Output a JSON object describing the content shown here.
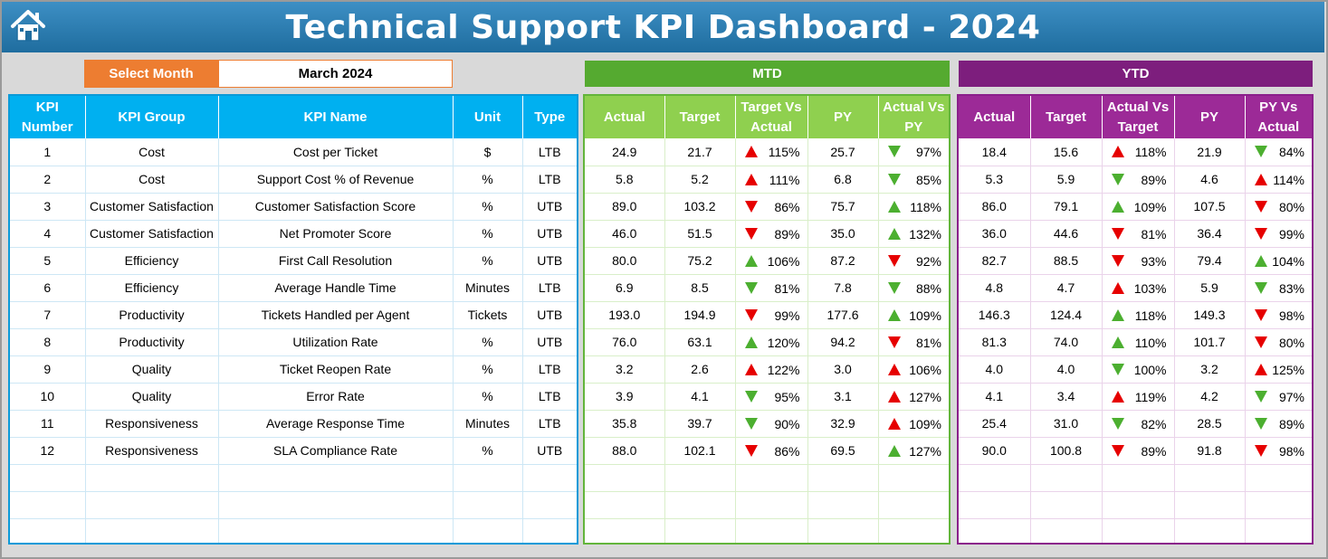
{
  "title": "Technical Support KPI Dashboard - 2024",
  "selector": {
    "label": "Select Month",
    "value": "March 2024"
  },
  "banners": {
    "mtd": "MTD",
    "ytd": "YTD"
  },
  "colors": {
    "title_bar": "#2a7db5",
    "selector_label": "#ed7d31",
    "kpi_header": "#00b0f0",
    "mtd_header": "#8fd04f",
    "ytd_header": "#9c2a97",
    "arrow_up_red": "#e60000",
    "arrow_green": "#4caf30"
  },
  "kpi_table": {
    "headers": [
      "KPI Number",
      "KPI Group",
      "KPI Name",
      "Unit",
      "Type"
    ],
    "rows": [
      [
        "1",
        "Cost",
        "Cost per Ticket",
        "$",
        "LTB"
      ],
      [
        "2",
        "Cost",
        "Support Cost % of Revenue",
        "%",
        "LTB"
      ],
      [
        "3",
        "Customer Satisfaction",
        "Customer Satisfaction Score",
        "%",
        "UTB"
      ],
      [
        "4",
        "Customer Satisfaction",
        "Net Promoter Score",
        "%",
        "UTB"
      ],
      [
        "5",
        "Efficiency",
        "First Call Resolution",
        "%",
        "UTB"
      ],
      [
        "6",
        "Efficiency",
        "Average Handle Time",
        "Minutes",
        "LTB"
      ],
      [
        "7",
        "Productivity",
        "Tickets Handled per Agent",
        "Tickets",
        "UTB"
      ],
      [
        "8",
        "Productivity",
        "Utilization Rate",
        "%",
        "UTB"
      ],
      [
        "9",
        "Quality",
        "Ticket Reopen Rate",
        "%",
        "LTB"
      ],
      [
        "10",
        "Quality",
        "Error Rate",
        "%",
        "LTB"
      ],
      [
        "11",
        "Responsiveness",
        "Average Response Time",
        "Minutes",
        "LTB"
      ],
      [
        "12",
        "Responsiveness",
        "SLA Compliance Rate",
        "%",
        "UTB"
      ]
    ]
  },
  "mtd_table": {
    "headers": [
      "Actual",
      "Target",
      "Target Vs Actual",
      "PY",
      "Actual Vs PY"
    ],
    "rows": [
      {
        "actual": "24.9",
        "target": "21.7",
        "tva": "115%",
        "tva_icon": "up-red",
        "py": "25.7",
        "avp": "97%",
        "avp_icon": "down-green"
      },
      {
        "actual": "5.8",
        "target": "5.2",
        "tva": "111%",
        "tva_icon": "up-red",
        "py": "6.8",
        "avp": "85%",
        "avp_icon": "down-green"
      },
      {
        "actual": "89.0",
        "target": "103.2",
        "tva": "86%",
        "tva_icon": "down-red",
        "py": "75.7",
        "avp": "118%",
        "avp_icon": "up-green"
      },
      {
        "actual": "46.0",
        "target": "51.5",
        "tva": "89%",
        "tva_icon": "down-red",
        "py": "35.0",
        "avp": "132%",
        "avp_icon": "up-green"
      },
      {
        "actual": "80.0",
        "target": "75.2",
        "tva": "106%",
        "tva_icon": "up-green",
        "py": "87.2",
        "avp": "92%",
        "avp_icon": "down-red"
      },
      {
        "actual": "6.9",
        "target": "8.5",
        "tva": "81%",
        "tva_icon": "down-green",
        "py": "7.8",
        "avp": "88%",
        "avp_icon": "down-green"
      },
      {
        "actual": "193.0",
        "target": "194.9",
        "tva": "99%",
        "tva_icon": "down-red",
        "py": "177.6",
        "avp": "109%",
        "avp_icon": "up-green"
      },
      {
        "actual": "76.0",
        "target": "63.1",
        "tva": "120%",
        "tva_icon": "up-green",
        "py": "94.2",
        "avp": "81%",
        "avp_icon": "down-red"
      },
      {
        "actual": "3.2",
        "target": "2.6",
        "tva": "122%",
        "tva_icon": "up-red",
        "py": "3.0",
        "avp": "106%",
        "avp_icon": "up-red"
      },
      {
        "actual": "3.9",
        "target": "4.1",
        "tva": "95%",
        "tva_icon": "down-green",
        "py": "3.1",
        "avp": "127%",
        "avp_icon": "up-red"
      },
      {
        "actual": "35.8",
        "target": "39.7",
        "tva": "90%",
        "tva_icon": "down-green",
        "py": "32.9",
        "avp": "109%",
        "avp_icon": "up-red"
      },
      {
        "actual": "88.0",
        "target": "102.1",
        "tva": "86%",
        "tva_icon": "down-red",
        "py": "69.5",
        "avp": "127%",
        "avp_icon": "up-green"
      }
    ]
  },
  "ytd_table": {
    "headers": [
      "Actual",
      "Target",
      "Actual Vs Target",
      "PY",
      "PY Vs Actual"
    ],
    "rows": [
      {
        "actual": "18.4",
        "target": "15.6",
        "tva": "118%",
        "tva_icon": "up-red",
        "py": "21.9",
        "avp": "84%",
        "avp_icon": "down-green"
      },
      {
        "actual": "5.3",
        "target": "5.9",
        "tva": "89%",
        "tva_icon": "down-green",
        "py": "4.6",
        "avp": "114%",
        "avp_icon": "up-red"
      },
      {
        "actual": "86.0",
        "target": "79.1",
        "tva": "109%",
        "tva_icon": "up-green",
        "py": "107.5",
        "avp": "80%",
        "avp_icon": "down-red"
      },
      {
        "actual": "36.0",
        "target": "44.6",
        "tva": "81%",
        "tva_icon": "down-red",
        "py": "36.4",
        "avp": "99%",
        "avp_icon": "down-red"
      },
      {
        "actual": "82.7",
        "target": "88.5",
        "tva": "93%",
        "tva_icon": "down-red",
        "py": "79.4",
        "avp": "104%",
        "avp_icon": "up-green"
      },
      {
        "actual": "4.8",
        "target": "4.7",
        "tva": "103%",
        "tva_icon": "up-red",
        "py": "5.9",
        "avp": "83%",
        "avp_icon": "down-green"
      },
      {
        "actual": "146.3",
        "target": "124.4",
        "tva": "118%",
        "tva_icon": "up-green",
        "py": "149.3",
        "avp": "98%",
        "avp_icon": "down-red"
      },
      {
        "actual": "81.3",
        "target": "74.0",
        "tva": "110%",
        "tva_icon": "up-green",
        "py": "101.7",
        "avp": "80%",
        "avp_icon": "down-red"
      },
      {
        "actual": "4.0",
        "target": "4.0",
        "tva": "100%",
        "tva_icon": "down-green",
        "py": "3.2",
        "avp": "125%",
        "avp_icon": "up-red"
      },
      {
        "actual": "4.1",
        "target": "3.4",
        "tva": "119%",
        "tva_icon": "up-red",
        "py": "4.2",
        "avp": "97%",
        "avp_icon": "down-green"
      },
      {
        "actual": "25.4",
        "target": "31.0",
        "tva": "82%",
        "tva_icon": "down-green",
        "py": "28.5",
        "avp": "89%",
        "avp_icon": "down-green"
      },
      {
        "actual": "90.0",
        "target": "100.8",
        "tva": "89%",
        "tva_icon": "down-red",
        "py": "91.8",
        "avp": "98%",
        "avp_icon": "down-red"
      }
    ]
  },
  "blank_rows": 3
}
